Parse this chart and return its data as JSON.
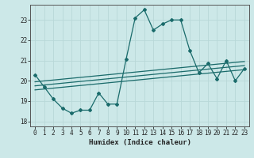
{
  "xlabel": "Humidex (Indice chaleur)",
  "background_color": "#cce8e8",
  "grid_color": "#b8d8d8",
  "line_color": "#1a6b6b",
  "xlim": [
    -0.5,
    23.5
  ],
  "ylim": [
    17.75,
    23.75
  ],
  "yticks": [
    18,
    19,
    20,
    21,
    22,
    23
  ],
  "xticks": [
    0,
    1,
    2,
    3,
    4,
    5,
    6,
    7,
    8,
    9,
    10,
    11,
    12,
    13,
    14,
    15,
    16,
    17,
    18,
    19,
    20,
    21,
    22,
    23
  ],
  "line1": [
    20.3,
    19.7,
    19.1,
    18.65,
    18.4,
    18.55,
    18.55,
    19.4,
    18.85,
    18.85,
    21.05,
    23.1,
    23.5,
    22.5,
    22.8,
    23.0,
    23.0,
    21.5,
    20.4,
    20.85,
    20.1,
    21.0,
    20.0,
    20.6
  ],
  "line2_x": [
    0,
    23
  ],
  "line2_y": [
    19.55,
    20.55
  ],
  "line3_x": [
    0,
    23
  ],
  "line3_y": [
    19.75,
    20.75
  ],
  "line4_x": [
    0,
    23
  ],
  "line4_y": [
    19.95,
    20.95
  ]
}
